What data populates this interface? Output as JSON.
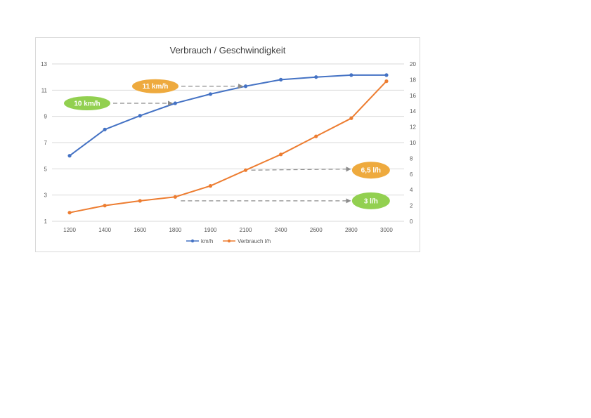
{
  "chart_data": {
    "type": "line",
    "title": "Verbrauch / Geschwindigkeit",
    "categories": [
      "1200",
      "1400",
      "1600",
      "1800",
      "1900",
      "2100",
      "2400",
      "2600",
      "2800",
      "3000"
    ],
    "series": [
      {
        "name": "km/h",
        "axis": "left",
        "color": "#4472c4",
        "values": [
          6.0,
          8.0,
          9.05,
          10.0,
          10.7,
          11.3,
          11.8,
          12.0,
          12.15,
          12.15
        ]
      },
      {
        "name": "Verbrauch l/h",
        "axis": "right",
        "color": "#ed7d31",
        "values": [
          1.1,
          2.0,
          2.6,
          3.1,
          4.5,
          6.5,
          8.5,
          10.8,
          13.1,
          17.8
        ]
      }
    ],
    "y_left": {
      "ylim": [
        1,
        13
      ],
      "ticks": [
        "1",
        "3",
        "5",
        "7",
        "9",
        "11",
        "13"
      ]
    },
    "y_right": {
      "ylim": [
        0,
        20
      ],
      "ticks": [
        "0",
        "2",
        "4",
        "6",
        "8",
        "10",
        "12",
        "14",
        "16",
        "18",
        "20"
      ]
    },
    "grid": true,
    "legend_position": "bottom",
    "annotations": [
      {
        "text": "10 km/h",
        "color": "#92d050",
        "axis": "left",
        "y": 10,
        "arrow_to_category": "1800",
        "side": "left"
      },
      {
        "text": "11 km/h",
        "color": "#eeaa3e",
        "axis": "left",
        "y": 11.3,
        "arrow_to_category": "2100",
        "side": "left"
      },
      {
        "text": "6,5 l/h",
        "color": "#eeaa3e",
        "axis": "right",
        "y": 6.5,
        "arrow_from_category": "2100",
        "side": "right"
      },
      {
        "text": "3 l/h",
        "color": "#92d050",
        "axis": "right",
        "y": 2.6,
        "arrow_from_category": "1800",
        "side": "right"
      }
    ]
  }
}
